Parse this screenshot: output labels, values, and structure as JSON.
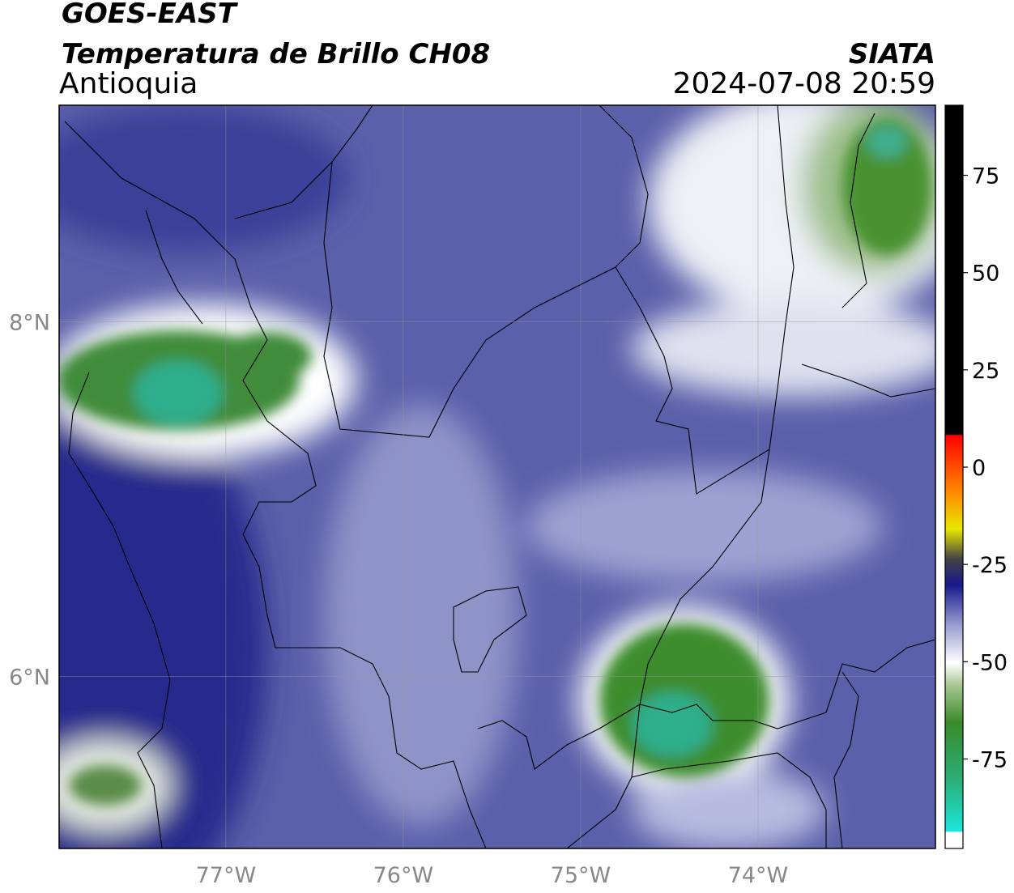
{
  "header": {
    "title": "GOES-EAST",
    "subtitle": "Temperatura de Brillo CH08",
    "region": "Antioquia",
    "source": "SIATA",
    "timestamp": "2024-07-08 20:59"
  },
  "map": {
    "xlim": [
      -77.94,
      -73.0
    ],
    "ylim": [
      5.03,
      9.22
    ],
    "xticks": [
      {
        "value": -77,
        "label": "77°W"
      },
      {
        "value": -76,
        "label": "76°W"
      },
      {
        "value": -75,
        "label": "75°W"
      },
      {
        "value": -74,
        "label": "74°W"
      }
    ],
    "yticks": [
      {
        "value": 8,
        "label": "8°N"
      },
      {
        "value": 6,
        "label": "6°N"
      }
    ],
    "grid": true
  },
  "colorbar": {
    "lim": [
      -98,
      93
    ],
    "ticks": [
      75,
      50,
      25,
      0,
      -25,
      -50,
      -75
    ]
  }
}
